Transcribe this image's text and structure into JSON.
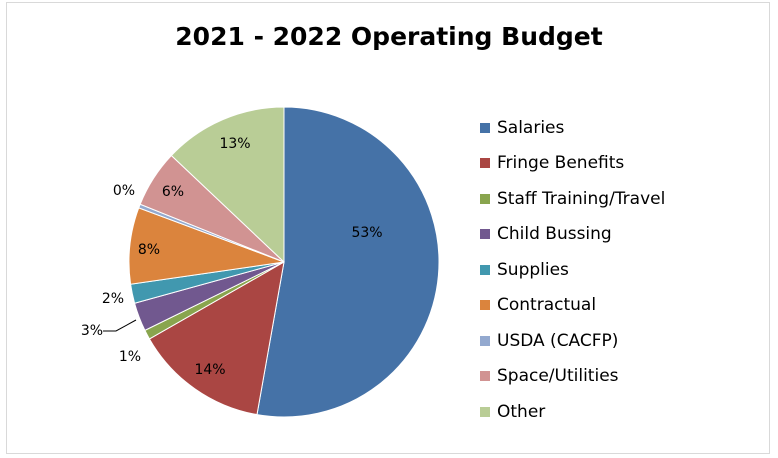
{
  "chart_data": {
    "type": "pie",
    "title": "2021 - 2022 Operating Budget",
    "slices": [
      {
        "label": "Salaries",
        "percent": 53,
        "value_label": "53%",
        "color": "#4572a7"
      },
      {
        "label": "Fringe Benefits",
        "percent": 14,
        "value_label": "14%",
        "color": "#aa4643"
      },
      {
        "label": "Staff Training/Travel",
        "percent": 1,
        "value_label": "1%",
        "color": "#89a54e"
      },
      {
        "label": "Child Bussing",
        "percent": 3,
        "value_label": "3%",
        "color": "#71588f"
      },
      {
        "label": "Supplies",
        "percent": 2,
        "value_label": "2%",
        "color": "#4198af"
      },
      {
        "label": "Contractual",
        "percent": 8,
        "value_label": "8%",
        "color": "#db843d"
      },
      {
        "label": "USDA (CACFP)",
        "percent": 0.4,
        "value_label": "0%",
        "color": "#93a9cf"
      },
      {
        "label": "Space/Utilities",
        "percent": 6,
        "value_label": "6%",
        "color": "#d19392"
      },
      {
        "label": "Other",
        "percent": 13,
        "value_label": "13%",
        "color": "#b9cd96"
      }
    ],
    "legend_position": "right"
  }
}
